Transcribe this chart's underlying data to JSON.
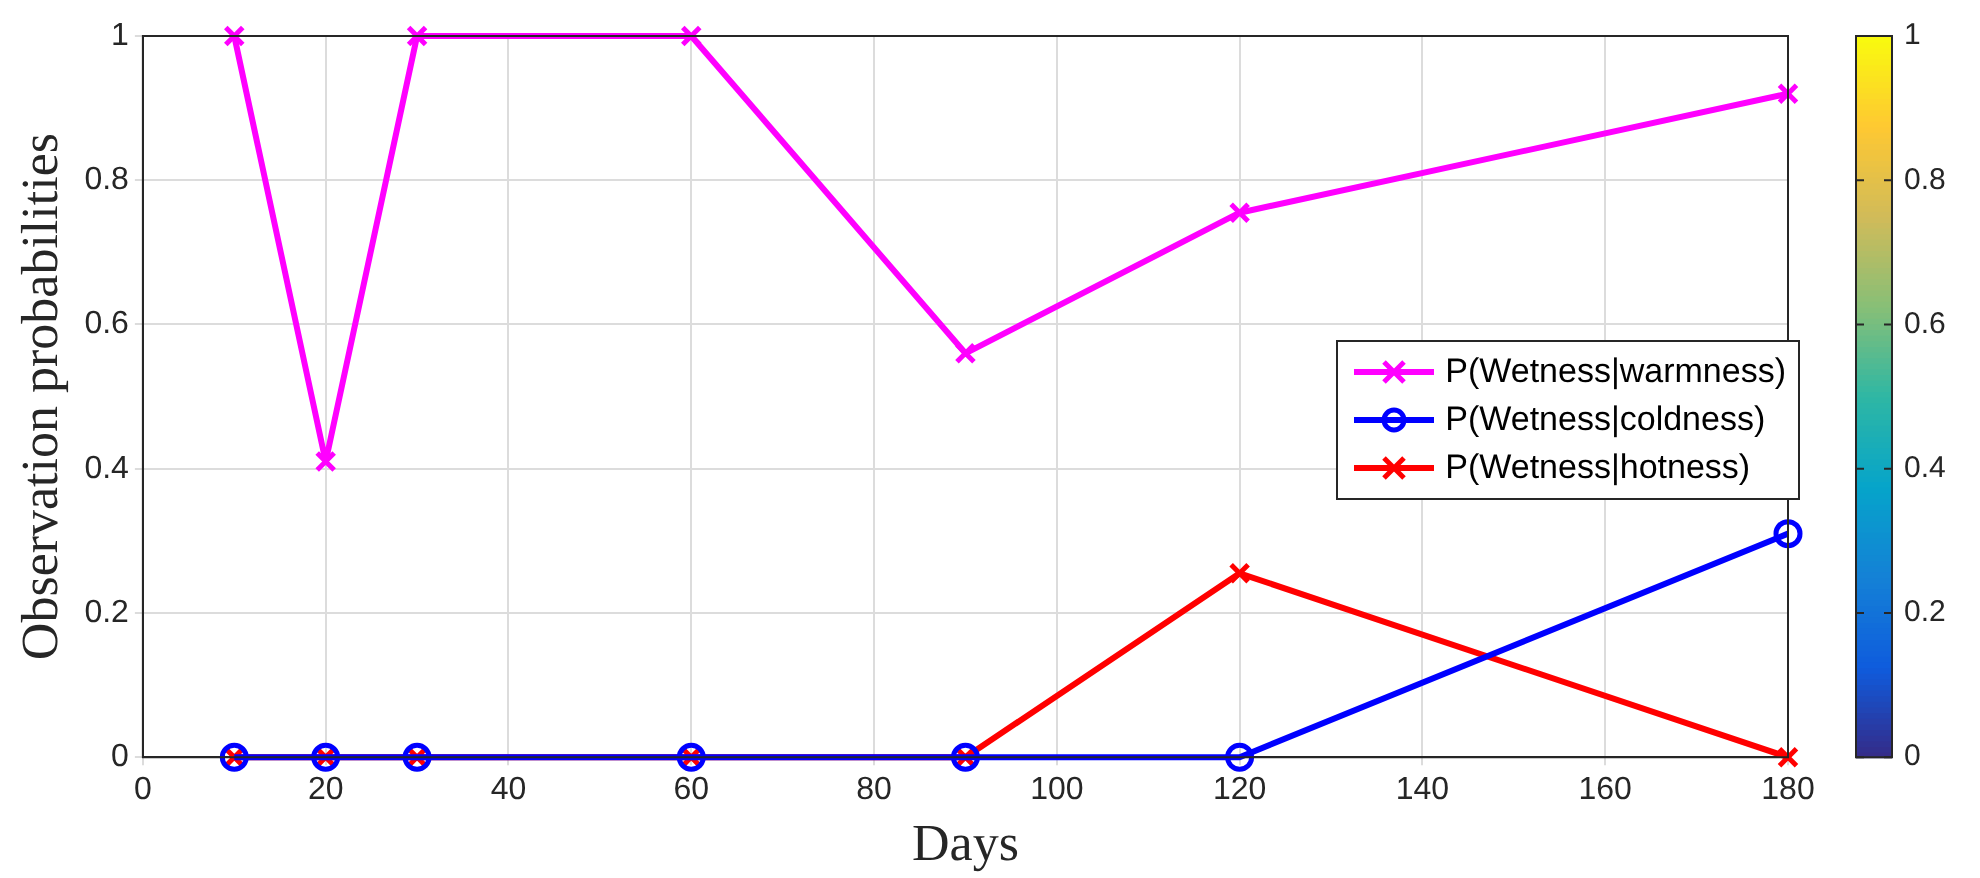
{
  "chart_data": {
    "type": "line",
    "xlabel": "Days",
    "ylabel": "Observation probabilities",
    "x": [
      10,
      20,
      30,
      60,
      90,
      120,
      180
    ],
    "series": [
      {
        "name": "P(Wetness|warmness)",
        "color": "#ff00ff",
        "marker": "cross",
        "values": [
          1,
          0.41,
          1,
          1,
          0.56,
          0.755,
          0.92
        ]
      },
      {
        "name": "P(Wetness|coldness)",
        "color": "#0000ff",
        "marker": "circle",
        "values": [
          0,
          0,
          0,
          0,
          0,
          0,
          0.31
        ]
      },
      {
        "name": "P(Wetness|hotness)",
        "color": "#ff0000",
        "marker": "cross",
        "values": [
          0,
          0,
          0,
          0,
          0,
          0.255,
          0
        ]
      }
    ],
    "xlim": [
      0,
      180
    ],
    "xticks": [
      0,
      20,
      40,
      60,
      80,
      100,
      120,
      140,
      160,
      180
    ],
    "ylim": [
      0,
      1
    ],
    "yticks": [
      0,
      0.2,
      0.4,
      0.6,
      0.8,
      1
    ],
    "clim": [
      0,
      1
    ],
    "cticks": [
      0,
      0.2,
      0.4,
      0.6,
      0.8,
      1
    ],
    "grid": true,
    "legend": "right",
    "line_style": "solid"
  }
}
